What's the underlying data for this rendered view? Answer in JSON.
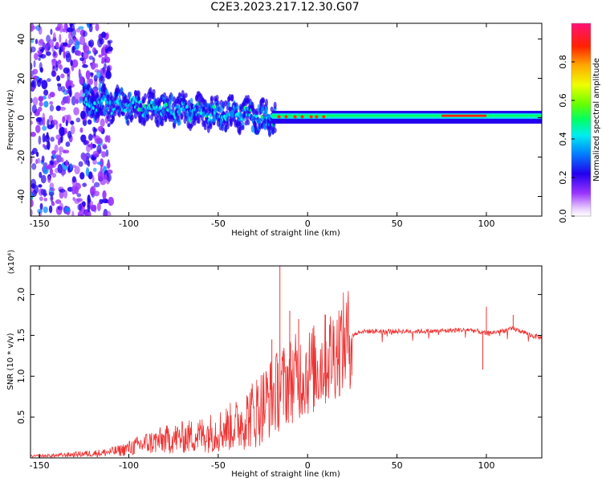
{
  "title": "C2E3.2023.217.12.30.G07",
  "colors": {
    "snr_line": "#ee3333",
    "axis": "#000000",
    "background": "#ffffff"
  },
  "chart_data": [
    {
      "type": "heatmap",
      "title": "",
      "xlabel": "Height of straight line (km)",
      "ylabel": "Frequency (Hz)",
      "xlim": [
        -155,
        131
      ],
      "ylim": [
        -50,
        48
      ],
      "xticks": [
        "-150",
        "-100",
        "-50",
        "0",
        "50",
        "100"
      ],
      "xtick_values": [
        -150,
        -100,
        -50,
        0,
        50,
        100
      ],
      "yticks": [
        "-40",
        "-20",
        "0",
        "20",
        "40"
      ],
      "ytick_values": [
        -40,
        -20,
        0,
        20,
        40
      ],
      "colorbar": {
        "label": "Normalized spectral amplitude",
        "range": [
          0,
          1
        ],
        "ticks": [
          "0.0",
          "0.2",
          "0.4",
          "0.6",
          "0.8"
        ],
        "tick_values": [
          0,
          0.2,
          0.4,
          0.6,
          0.8
        ],
        "colormap": "rainbow (white-violet-blue-cyan-green-yellow-red-magenta)"
      },
      "features": [
        {
          "x_range": [
            -155,
            -120
          ],
          "description": "widely scattered low-amplitude energy across full frequency range"
        },
        {
          "x_range": [
            -125,
            -20
          ],
          "center_hz": [
            8,
            0
          ],
          "spread_hz": 6,
          "amplitude": 0.35
        },
        {
          "x_range": [
            -20,
            131
          ],
          "center_hz": 1,
          "spread_hz": 1.5,
          "amplitude": 0.5
        },
        {
          "x_range": [
            75,
            100
          ],
          "center_hz": 1,
          "amplitude": 0.85
        }
      ]
    },
    {
      "type": "line",
      "title": "",
      "xlabel": "Height of straight line (km)",
      "ylabel": "SNR (10 * v/v)",
      "y_multiplier": "(x10⁴)",
      "xlim": [
        -155,
        131
      ],
      "ylim": [
        0,
        2.35
      ],
      "xticks": [
        "-150",
        "-100",
        "-50",
        "0",
        "50",
        "100"
      ],
      "xtick_values": [
        -150,
        -100,
        -50,
        0,
        50,
        100
      ],
      "yticks": [
        "0.5",
        "1.0",
        "1.5",
        "2.0"
      ],
      "ytick_values": [
        0.5,
        1.0,
        1.5,
        2.0
      ],
      "series": [
        {
          "x": [
            -155,
            -140,
            -125,
            -115,
            -105,
            -100,
            -90,
            -80,
            -70,
            -60,
            -50,
            -40,
            -30,
            -25,
            -20,
            -15,
            -10,
            -5,
            0,
            5,
            10,
            15,
            20,
            25,
            30,
            40,
            50,
            60,
            70,
            80,
            90,
            95,
            100,
            105,
            110,
            115,
            120,
            125,
            131
          ],
          "values": [
            0.02,
            0.03,
            0.05,
            0.06,
            0.09,
            0.12,
            0.18,
            0.22,
            0.25,
            0.28,
            0.33,
            0.4,
            0.55,
            0.65,
            0.75,
            0.85,
            0.95,
            1.0,
            1.05,
            1.1,
            1.2,
            1.3,
            1.4,
            1.5,
            1.55,
            1.55,
            1.55,
            1.55,
            1.55,
            1.56,
            1.57,
            1.55,
            1.52,
            1.54,
            1.56,
            1.58,
            1.55,
            1.5,
            1.47
          ]
        }
      ],
      "spikes": [
        {
          "x": -15.5,
          "value": 2.35
        },
        {
          "x": -10,
          "value": 1.8
        },
        {
          "x": -5,
          "value": 1.7
        },
        {
          "x": 10,
          "value": 1.75
        },
        {
          "x": -20,
          "value": 1.45
        },
        {
          "x": 100,
          "value": 1.85
        },
        {
          "x": 98,
          "value": 1.08
        },
        {
          "x": 115,
          "value": 1.75
        }
      ]
    }
  ]
}
